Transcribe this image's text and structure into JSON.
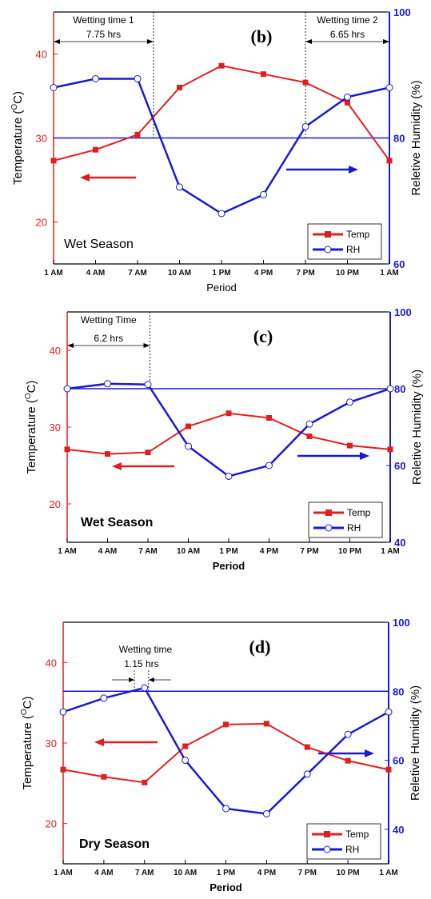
{
  "chart_data": [
    {
      "type": "line",
      "panel_label": "(b)",
      "season": "Wet  Season",
      "categories": [
        "1 AM",
        "4 AM",
        "7 AM",
        "10 AM",
        "1 PM",
        "4 PM",
        "7 PM",
        "10 PM",
        "1 AM"
      ],
      "series": [
        {
          "name": "Temp",
          "axis": "left",
          "color": "#e02020",
          "marker": "square",
          "values": [
            27.3,
            28.6,
            30.4,
            36.0,
            38.6,
            37.6,
            36.6,
            34.2,
            27.3
          ]
        },
        {
          "name": "RH",
          "axis": "right",
          "color": "#1a1ad0",
          "marker": "circle",
          "values": [
            88.0,
            89.4,
            89.4,
            72.2,
            68.0,
            71.0,
            81.8,
            86.5,
            88.0
          ]
        }
      ],
      "xlabel": "Period",
      "ylabel_left_prefix": "Temperature (",
      "ylabel_left_sup": "O",
      "ylabel_left_suffix": "C)",
      "ylabel_right": "Reletive Humidity (%)",
      "ylim_left": [
        15,
        45
      ],
      "yticks_left": [
        "20",
        "30",
        "40"
      ],
      "ylim_right": [
        60,
        100
      ],
      "yticks_right": [
        "60",
        "80",
        "100"
      ],
      "rh_reference": 80,
      "wetting_periods": [
        {
          "label": "Wetting time 1",
          "value": "7.75 hrs",
          "start": 0,
          "end": 2.38
        },
        {
          "label": "Wetting time 2",
          "value": "6.65 hrs",
          "start": 6.0,
          "end": 8.0
        }
      ],
      "temp_arrow": "left",
      "rh_arrow": "right",
      "legend": {
        "placement": "bottom-right",
        "entries": [
          "Temp",
          "RH"
        ]
      }
    },
    {
      "type": "line",
      "panel_label": "(c)",
      "season": "Wet Season",
      "categories": [
        "1 AM",
        "4 AM",
        "7 AM",
        "10 AM",
        "1 PM",
        "4 PM",
        "7 PM",
        "10 PM",
        "1 AM"
      ],
      "series": [
        {
          "name": "Temp",
          "axis": "left",
          "color": "#e02020",
          "marker": "square",
          "values": [
            27.1,
            26.5,
            26.7,
            30.1,
            31.8,
            31.2,
            28.8,
            27.6,
            27.1
          ]
        },
        {
          "name": "RH",
          "axis": "right",
          "color": "#1a1ad0",
          "marker": "circle",
          "values": [
            80.0,
            81.3,
            81.1,
            65.0,
            57.2,
            60.0,
            70.8,
            76.5,
            80.0
          ]
        }
      ],
      "xlabel": "Period",
      "ylabel_left_prefix": "Temperature (",
      "ylabel_left_sup": "O",
      "ylabel_left_suffix": "C)",
      "ylabel_right": "Reletive Humidity (%)",
      "ylim_left": [
        15,
        45
      ],
      "yticks_left": [
        "20",
        "30",
        "40"
      ],
      "ylim_right": [
        40,
        100
      ],
      "yticks_right": [
        "40",
        "60",
        "80",
        "100"
      ],
      "rh_reference": 80,
      "wetting_periods": [
        {
          "label": "Wetting Time",
          "value": "6.2 hrs",
          "start": 0,
          "end": 2.05
        }
      ],
      "temp_arrow": "left",
      "rh_arrow": "right",
      "legend": {
        "placement": "bottom-right",
        "entries": [
          "Temp",
          "RH"
        ]
      }
    },
    {
      "type": "line",
      "panel_label": "(d)",
      "season": "Dry Season",
      "categories": [
        "1 AM",
        "4 AM",
        "7 AM",
        "10 AM",
        "1 PM",
        "4 PM",
        "7 PM",
        "10 PM",
        "1 AM"
      ],
      "series": [
        {
          "name": "Temp",
          "axis": "left",
          "color": "#e02020",
          "marker": "square",
          "values": [
            26.7,
            25.8,
            25.1,
            29.6,
            32.3,
            32.4,
            29.5,
            27.8,
            26.7
          ]
        },
        {
          "name": "RH",
          "axis": "right",
          "color": "#1a1ad0",
          "marker": "circle",
          "values": [
            74.0,
            78.0,
            81.0,
            60.0,
            46.0,
            44.5,
            56.0,
            67.5,
            74.0
          ]
        }
      ],
      "xlabel": "Period",
      "ylabel_left_prefix": "Temperature (",
      "ylabel_left_sup": "O",
      "ylabel_left_suffix": "C)",
      "ylabel_right": "Reletive Humidity (%)",
      "ylim_left": [
        15,
        45
      ],
      "yticks_left": [
        "20",
        "30",
        "40"
      ],
      "ylim_right": [
        30,
        100
      ],
      "yticks_right": [
        "40",
        "60",
        "80",
        "100"
      ],
      "rh_reference": 80,
      "wetting_periods": [
        {
          "label": "Wetting time",
          "value": "1.15 hrs",
          "start": 1.75,
          "end": 2.1
        }
      ],
      "temp_arrow": "left",
      "rh_arrow": "right",
      "legend": {
        "placement": "bottom-right",
        "entries": [
          "Temp",
          "RH"
        ]
      }
    }
  ]
}
